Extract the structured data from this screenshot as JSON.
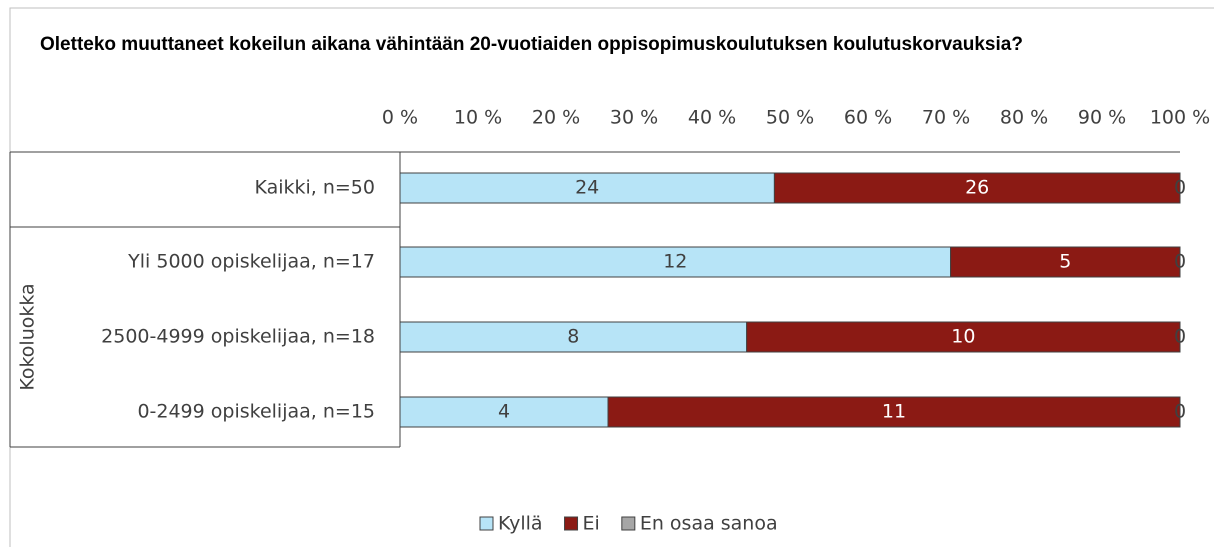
{
  "chart_data": {
    "type": "bar",
    "orientation": "horizontal",
    "stacking": "percent",
    "title": "Oletteko muuttaneet kokeilun aikana vähintään 20-vuotiaiden oppisopimuskoulutuksen koulutuskorvauksia?",
    "categories": [
      "Kaikki, n=50",
      "Yli 5000 opiskelijaa, n=17",
      "2500-4999 opiskelijaa, n=18",
      "0-2499 opiskelijaa, n=15"
    ],
    "category_groups": [
      null,
      "Kokoluokka",
      "Kokoluokka",
      "Kokoluokka"
    ],
    "series": [
      {
        "name": "Kyllä",
        "color": "#b7e4f7",
        "values": [
          24,
          12,
          8,
          4
        ]
      },
      {
        "name": "Ei",
        "color": "#8b1a14",
        "values": [
          26,
          5,
          10,
          11
        ]
      },
      {
        "name": "En osaa sanoa",
        "color": "#a6a6a6",
        "values": [
          0,
          0,
          0,
          0
        ]
      }
    ],
    "xlim": [
      0,
      100
    ],
    "xticks": [
      {
        "value": 0,
        "label": "0 %"
      },
      {
        "value": 10,
        "label": "10 %"
      },
      {
        "value": 20,
        "label": "20 %"
      },
      {
        "value": 30,
        "label": "30 %"
      },
      {
        "value": 40,
        "label": "40 %"
      },
      {
        "value": 50,
        "label": "50 %"
      },
      {
        "value": 60,
        "label": "60 %"
      },
      {
        "value": 70,
        "label": "70 %"
      },
      {
        "value": 80,
        "label": "80 %"
      },
      {
        "value": 90,
        "label": "90 %"
      },
      {
        "value": 100,
        "label": "100 %"
      }
    ],
    "legend": "bottom"
  }
}
